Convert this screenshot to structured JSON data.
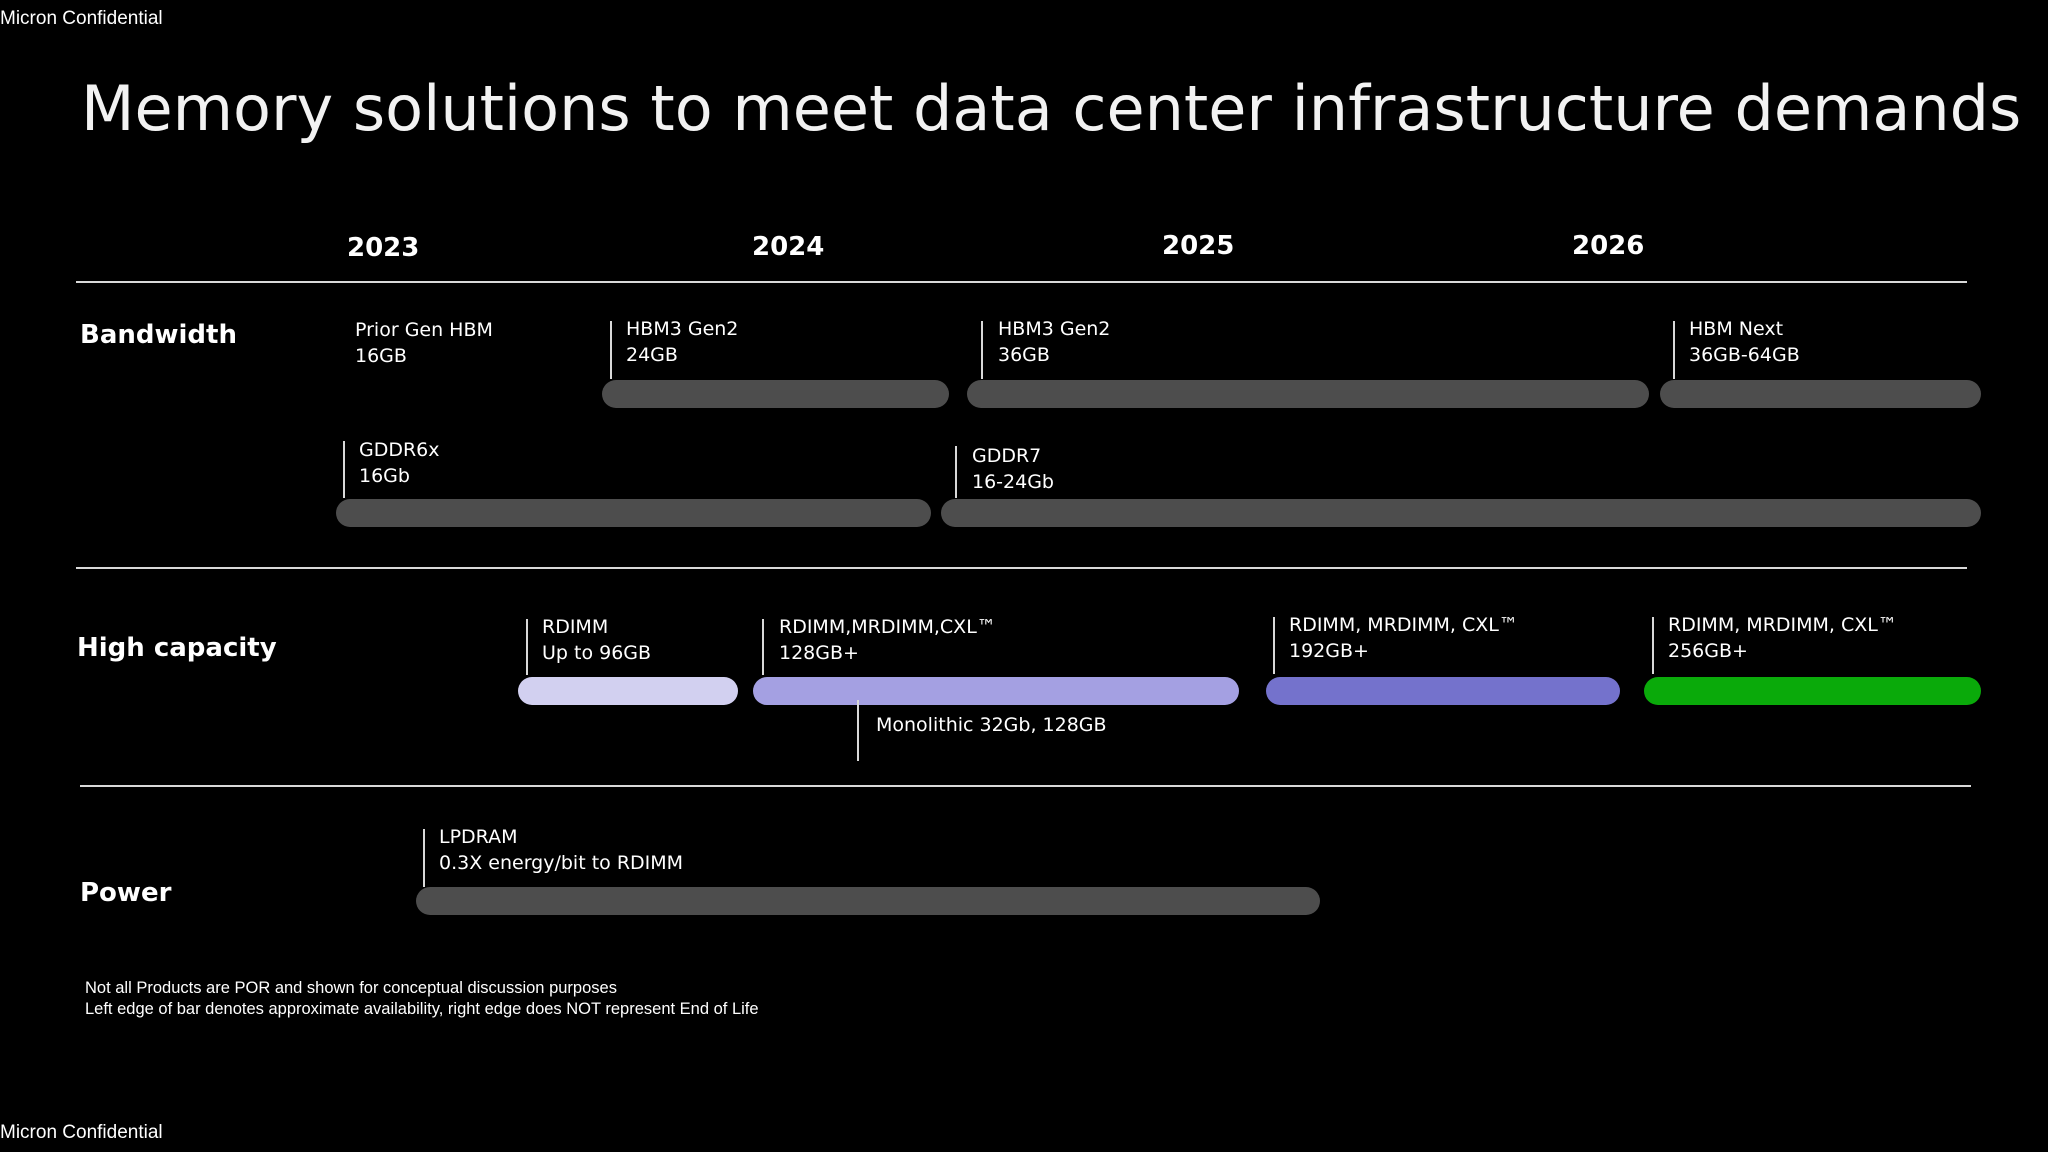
{
  "header": {
    "confidential": "Micron Confidential"
  },
  "footer": {
    "confidential": "Micron Confidential"
  },
  "title": "Memory solutions to meet data center infrastructure demands",
  "timeline": {
    "years": [
      "2023",
      "2024",
      "2025",
      "2026"
    ]
  },
  "categories": {
    "bandwidth": "Bandwidth",
    "high_capacity": "High capacity",
    "power": "Power"
  },
  "products": {
    "prior_hbm": {
      "name": "Prior Gen HBM",
      "spec": "16GB"
    },
    "hbm3_gen2_24": {
      "name": "HBM3 Gen2",
      "spec": "24GB"
    },
    "hbm3_gen2_36": {
      "name": "HBM3 Gen2",
      "spec": "36GB"
    },
    "hbm_next": {
      "name": "HBM Next",
      "spec": "36GB-64GB"
    },
    "gddr6x": {
      "name": "GDDR6x",
      "spec": "16Gb"
    },
    "gddr7": {
      "name": "GDDR7",
      "spec": "16-24Gb"
    },
    "rdimm_96": {
      "name": "RDIMM",
      "spec": "Up to 96GB"
    },
    "rdimm_128": {
      "name": "RDIMM,MRDIMM,CXL™",
      "spec": "128GB+"
    },
    "monolithic": {
      "name": "Monolithic 32Gb, 128GB"
    },
    "rdimm_192": {
      "name": "RDIMM, MRDIMM, CXL™",
      "spec": "192GB+"
    },
    "rdimm_256": {
      "name": "RDIMM, MRDIMM, CXL™",
      "spec": "256GB+"
    },
    "lpdram": {
      "name": "LPDRAM",
      "spec": "0.3X energy/bit to RDIMM"
    }
  },
  "colors": {
    "bar_gray": "#4d4d4d",
    "rdimm_96": "#d2d0f0",
    "rdimm_128": "#a4a0e2",
    "rdimm_192": "#7472cc",
    "rdimm_256": "#0aaa0a"
  },
  "notes": [
    "Not all Products are POR and shown for conceptual discussion purposes",
    "Left edge of bar denotes approximate availability, right edge does NOT represent End of Life"
  ]
}
